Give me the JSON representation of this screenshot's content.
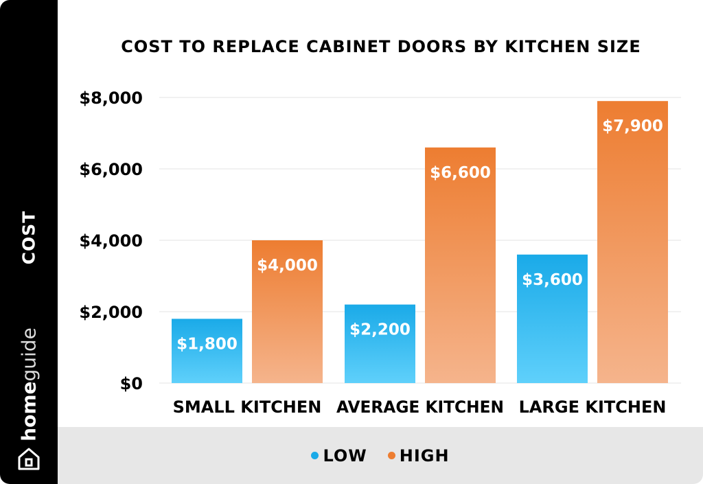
{
  "chart_data": {
    "type": "bar",
    "title": "COST TO REPLACE CABINET DOORS BY KITCHEN SIZE",
    "ylabel": "COST",
    "xlabel": "",
    "categories": [
      "SMALL KITCHEN",
      "AVERAGE KITCHEN",
      "LARGE KITCHEN"
    ],
    "series": [
      {
        "name": "LOW",
        "values": [
          1800,
          2200,
          3600
        ],
        "labels": [
          "$1,800",
          "$2,200",
          "$3,600"
        ]
      },
      {
        "name": "HIGH",
        "values": [
          4000,
          6600,
          7900
        ],
        "labels": [
          "$4,000",
          "$6,600",
          "$7,900"
        ]
      }
    ],
    "ylim": [
      0,
      8000
    ],
    "yticks": [
      0,
      2000,
      4000,
      6000,
      8000
    ],
    "ytick_labels": [
      "$0",
      "$2,000",
      "$4,000",
      "$6,000",
      "$8,000"
    ],
    "grid": true,
    "legend_position": "bottom"
  },
  "colors": {
    "low_top": "#1aaae8",
    "low_bottom": "#5fd0fb",
    "high_top": "#ed7d31",
    "high_bottom": "#f5b48c",
    "sidebar": "#000000",
    "legend_band": "#e7e7e7"
  },
  "brand": {
    "part1": "home",
    "part2": "guide",
    "icon": "house-icon"
  }
}
